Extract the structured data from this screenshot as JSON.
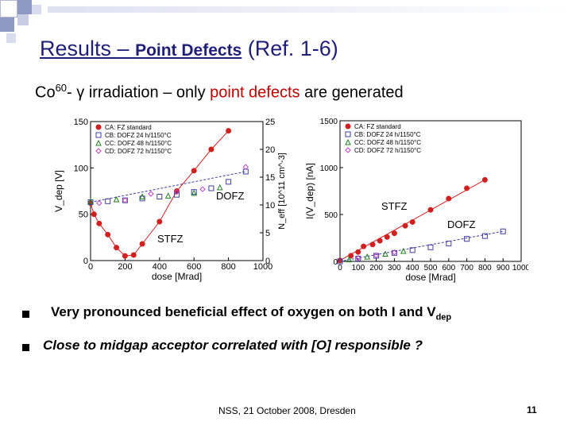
{
  "slide": {
    "title_main": "Results – ",
    "title_sub": "Point Defects",
    "title_ref": " (Ref. 1-6)",
    "subtitle_prefix": "Co",
    "subtitle_sup": "60",
    "subtitle_mid": "- γ irradiation – only ",
    "subtitle_highlight": "point defects",
    "subtitle_suffix": " are generated",
    "bullets": [
      {
        "text": "Very pronounced beneficial effect of oxygen on both I and V",
        "sub": "dep"
      },
      {
        "text": "Close to midgap acceptor correlated with [O] responsible ?"
      }
    ],
    "footer": "NSS, 21 October 2008, Dresden",
    "page_number": "11",
    "colors": {
      "title": "#1f1f7a",
      "highlight": "#c00000",
      "decor": "#9aa3c8"
    }
  },
  "chart_data": [
    {
      "type": "scatter",
      "xlabel": "dose [Mrad]",
      "ylabel": "V_dep [V]",
      "y2label": "N_eff [10^11 cm^-3]",
      "xlim": [
        0,
        1000
      ],
      "ylim": [
        0,
        150
      ],
      "y2lim": [
        0,
        25
      ],
      "x_ticks": [
        "0",
        "200",
        "400",
        "600",
        "800",
        "1000"
      ],
      "y_ticks": [
        "0",
        "50",
        "100",
        "150"
      ],
      "y2_ticks": [
        "0",
        "5",
        "10",
        "15",
        "20",
        "25"
      ],
      "annotations": [
        "DOFZ",
        "STFZ"
      ],
      "series": [
        {
          "name": "CA: FZ standard",
          "color": "#d02020",
          "marker": "circle",
          "x": [
            0,
            20,
            50,
            100,
            150,
            200,
            250,
            300,
            400,
            500,
            600,
            700,
            800
          ],
          "y": [
            62,
            50,
            40,
            28,
            14,
            5,
            6,
            18,
            42,
            75,
            97,
            120,
            140
          ]
        },
        {
          "name": "CB: DOFZ 24 h/1150°C",
          "color": "#4040a0",
          "marker": "square",
          "x": [
            0,
            100,
            200,
            300,
            400,
            500,
            600,
            700,
            800,
            900
          ],
          "y": [
            63,
            64,
            65,
            67,
            69,
            71,
            74,
            78,
            85,
            96
          ]
        },
        {
          "name": "CC: DOFZ 48 h/1150°C",
          "color": "#208020",
          "marker": "triangle",
          "x": [
            0,
            150,
            300,
            450,
            600,
            750
          ],
          "y": [
            64,
            66,
            69,
            70,
            73,
            79
          ]
        },
        {
          "name": "CD: DOFZ 72 h/1150°C",
          "color": "#c040c0",
          "marker": "diamond",
          "x": [
            50,
            200,
            350,
            500,
            650,
            900
          ],
          "y": [
            62,
            65,
            72,
            74,
            77,
            101
          ]
        }
      ]
    },
    {
      "type": "scatter",
      "xlabel": "dose [Mrad]",
      "ylabel": "I(V_dep) [nA]",
      "xlim": [
        0,
        1000
      ],
      "ylim": [
        0,
        1500
      ],
      "x_ticks": [
        "0",
        "100",
        "200",
        "300",
        "400",
        "500",
        "600",
        "700",
        "800",
        "900",
        "1000"
      ],
      "y_ticks": [
        "0",
        "500",
        "1000",
        "1500"
      ],
      "annotations": [
        "STFZ",
        "DOFZ"
      ],
      "series": [
        {
          "name": "CA: FZ standard",
          "color": "#d02020",
          "marker": "circle",
          "x": [
            0,
            60,
            100,
            130,
            180,
            220,
            260,
            300,
            360,
            400,
            500,
            600,
            700,
            800
          ],
          "y": [
            10,
            60,
            100,
            160,
            180,
            220,
            260,
            300,
            380,
            420,
            550,
            670,
            780,
            870
          ]
        },
        {
          "name": "CB: DOFZ 24 h/1150°C",
          "color": "#4040a0",
          "marker": "square",
          "x": [
            0,
            100,
            200,
            300,
            400,
            500,
            600,
            700,
            800,
            900
          ],
          "y": [
            0,
            30,
            60,
            90,
            120,
            150,
            190,
            240,
            270,
            320
          ]
        },
        {
          "name": "CC: DOFZ 48 h/1150°C",
          "color": "#208020",
          "marker": "triangle",
          "x": [
            50,
            150,
            250,
            350
          ],
          "y": [
            20,
            50,
            80,
            110
          ]
        },
        {
          "name": "CD: DOFZ 72 h/1150°C",
          "color": "#c040c0",
          "marker": "diamond",
          "x": [
            100,
            200,
            300
          ],
          "y": [
            35,
            65,
            95
          ]
        }
      ]
    }
  ]
}
